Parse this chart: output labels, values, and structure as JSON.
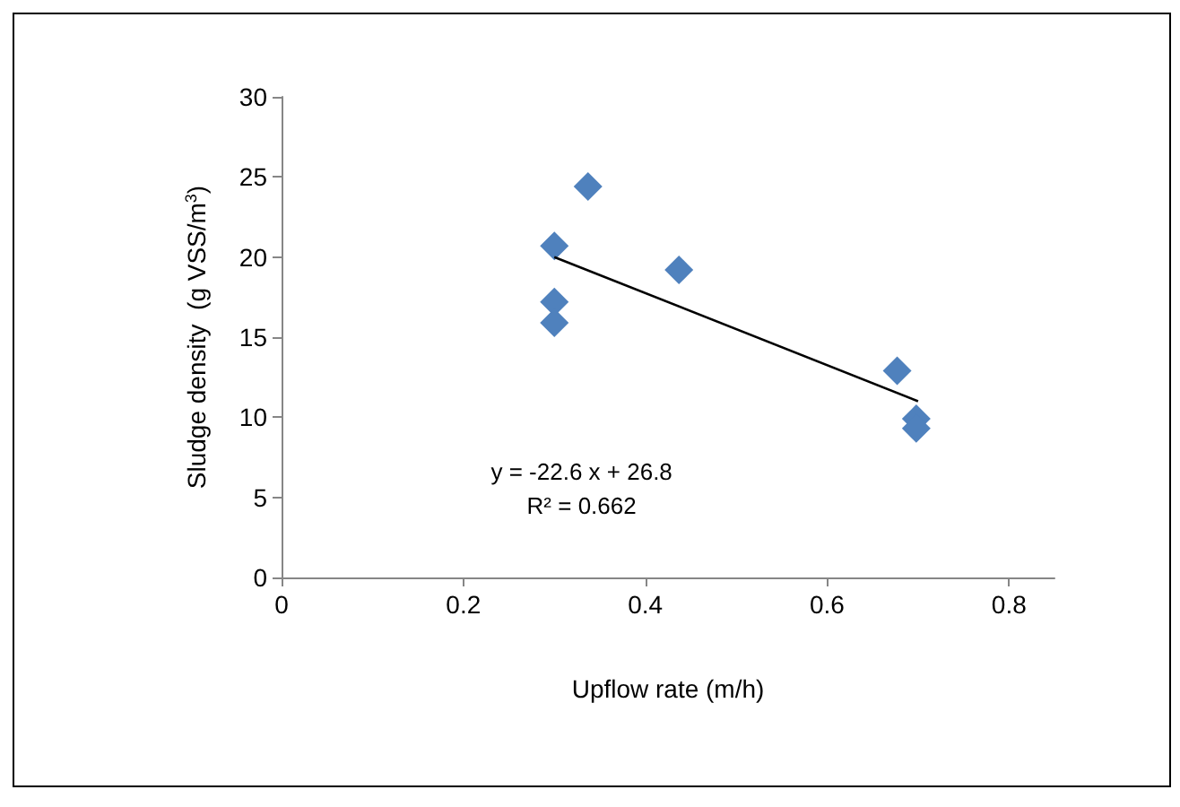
{
  "chart_data": {
    "type": "scatter",
    "xlabel": "Upflow rate (m/h)",
    "ylabel": "Sludge density  (g VSS/m$^{3}$)",
    "annotations": [
      "y = -22.6 x + 26.8",
      "R² = 0.662"
    ],
    "series": [
      {
        "color": "#4f81bd",
        "marker": "diamond",
        "x": [
          0.3,
          0.337,
          0.3,
          0.3,
          0.437,
          0.677,
          0.698,
          0.698
        ],
        "values": [
          20.7,
          24.4,
          17.2,
          15.9,
          19.2,
          12.9,
          9.9,
          9.3
        ]
      },
      {
        "type": "line",
        "color": "#000000",
        "marker": "none",
        "x": [
          0.3,
          0.7
        ],
        "values": [
          20.0,
          11.0
        ]
      }
    ],
    "xlim": [
      0,
      0.85
    ],
    "xticks": [
      0,
      0.2,
      0.4,
      0.6,
      0.8
    ],
    "ylim": [
      0,
      30
    ],
    "yticks": [
      0,
      5,
      10,
      15,
      20,
      25,
      30
    ],
    "grid": false
  }
}
